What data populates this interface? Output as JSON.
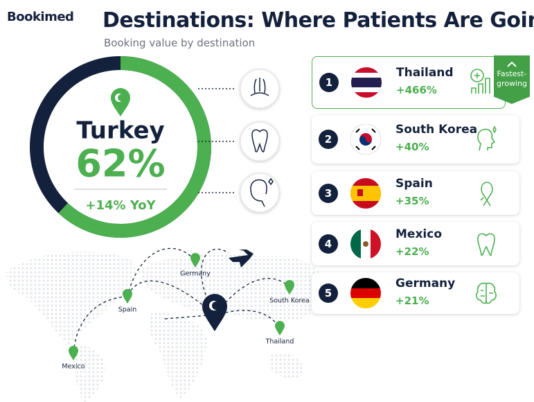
{
  "header": {
    "logo": "Bookimed",
    "title": "Destinations: Where Patients Are Going",
    "subtitle": "Booking value by destination"
  },
  "hero": {
    "country": "Turkey",
    "share": {
      "value": 62,
      "label": "62%"
    },
    "yoy": "+14% YoY"
  },
  "ranking": [
    {
      "rank": 1,
      "country": "Thailand",
      "growth": "+466%"
    },
    {
      "rank": 2,
      "country": "South Korea",
      "growth": "+40%"
    },
    {
      "rank": 3,
      "country": "Spain",
      "growth": "+35%"
    },
    {
      "rank": 4,
      "country": "Mexico",
      "growth": "+22%"
    },
    {
      "rank": 5,
      "country": "Germany",
      "growth": "+21%"
    }
  ],
  "badge": "Fastest-growing",
  "map": {
    "labels": [
      "Germany",
      "Spain",
      "South Korea",
      "Thailand",
      "Mexico"
    ]
  }
}
